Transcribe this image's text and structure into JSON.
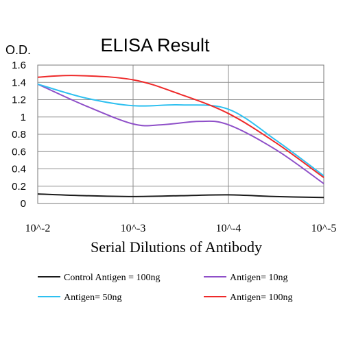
{
  "chart_data": {
    "type": "line",
    "title": "ELISA Result",
    "ylabel": "O.D.",
    "xlabel": "Serial Dilutions of Antibody",
    "x_tick_labels": [
      "10^-2",
      "10^-3",
      "10^-4",
      "10^-5"
    ],
    "y_tick_labels": [
      "0",
      "0.2",
      "0.4",
      "0.6",
      "0.8",
      "1",
      "1.2",
      "1.4",
      "1.6"
    ],
    "ylim": [
      0,
      1.6
    ],
    "x_scale": "log (decreasing concentration)",
    "grid": true,
    "legend_placement": "bottom",
    "series": [
      {
        "name": "Control Antigen = 100ng",
        "color": "#1a1a1a",
        "points": [
          [
            -2,
            0.11
          ],
          [
            -2.5,
            0.09
          ],
          [
            -3,
            0.08
          ],
          [
            -3.5,
            0.09
          ],
          [
            -4,
            0.1
          ],
          [
            -4.5,
            0.08
          ],
          [
            -5,
            0.07
          ]
        ]
      },
      {
        "name": "Antigen= 10ng",
        "color": "#8e4fc8",
        "points": [
          [
            -2,
            1.38
          ],
          [
            -2.5,
            1.13
          ],
          [
            -3,
            0.92
          ],
          [
            -3.3,
            0.91
          ],
          [
            -3.7,
            0.95
          ],
          [
            -4,
            0.91
          ],
          [
            -4.5,
            0.62
          ],
          [
            -5,
            0.23
          ]
        ]
      },
      {
        "name": "Antigen= 50ng",
        "color": "#2ec0f0",
        "points": [
          [
            -2,
            1.38
          ],
          [
            -2.5,
            1.22
          ],
          [
            -3,
            1.13
          ],
          [
            -3.5,
            1.14
          ],
          [
            -4,
            1.09
          ],
          [
            -4.5,
            0.73
          ],
          [
            -5,
            0.32
          ]
        ]
      },
      {
        "name": "Antigen= 100ng",
        "color": "#ee2a2a",
        "points": [
          [
            -2,
            1.46
          ],
          [
            -2.4,
            1.48
          ],
          [
            -3,
            1.43
          ],
          [
            -3.5,
            1.26
          ],
          [
            -4,
            1.04
          ],
          [
            -4.5,
            0.7
          ],
          [
            -5,
            0.3
          ]
        ]
      }
    ]
  }
}
